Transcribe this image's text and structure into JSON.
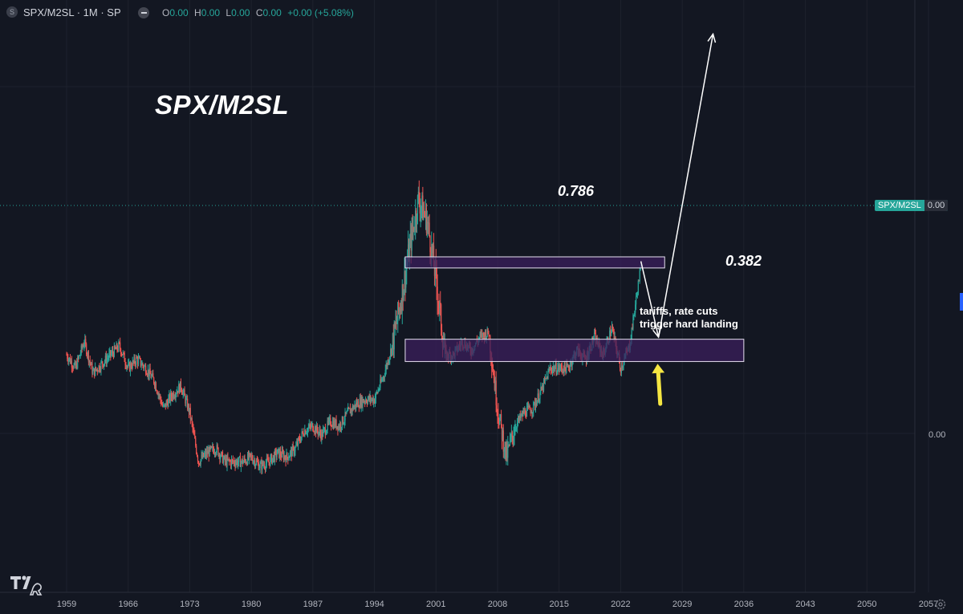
{
  "header": {
    "symbol_icon": "S",
    "title": "SPX/M2SL · 1M · SP",
    "ohlc": [
      {
        "key": "O",
        "value": "0.00"
      },
      {
        "key": "H",
        "value": "0.00"
      },
      {
        "key": "L",
        "value": "0.00"
      },
      {
        "key": "C",
        "value": "0.00"
      }
    ],
    "change": "+0.00 (+5.08%)"
  },
  "price_axis": {
    "last_symbol": "SPX/M2SL",
    "last_value": "0.00",
    "tick": "0.00"
  },
  "time_axis": [
    "1959",
    "1966",
    "1973",
    "1980",
    "1987",
    "1994",
    "2001",
    "2008",
    "2015",
    "2022",
    "2029",
    "2036",
    "2043",
    "2050",
    "2057"
  ],
  "annotations": {
    "title": "SPX/M2SL",
    "level_upper": "0.786",
    "level_lower": "0.382",
    "note_line1": "tariffs, rate cuts",
    "note_line2": "trigger hard landing"
  },
  "colors": {
    "background": "#131722",
    "up": "#26a69a",
    "down": "#ef5350",
    "zone_fill": "#3b1f5c",
    "arrow_yellow": "#f5e642"
  },
  "icons": {
    "hide": "minus-icon",
    "logo": "tradingview-logo",
    "settings": "gear-icon"
  },
  "chart_data": {
    "type": "candlestick",
    "title": "SPX/M2SL",
    "interval": "1M",
    "x_range": [
      1959,
      2060
    ],
    "series": [
      {
        "x": [
          1959,
          1960,
          1961,
          1962,
          1963,
          1964,
          1965,
          1966,
          1967,
          1968,
          1969,
          1970,
          1971,
          1972,
          1973,
          1974,
          1975,
          1976,
          1977,
          1978,
          1979,
          1980,
          1981,
          1982,
          1983,
          1984,
          1985,
          1986,
          1987,
          1988,
          1989,
          1990,
          1991,
          1992,
          1993,
          1994,
          1995,
          1996,
          1997,
          1998,
          1999,
          2000,
          2001,
          2002,
          2003,
          2004,
          2005,
          2006,
          2007,
          2008,
          2009,
          2010,
          2011,
          2012,
          2013,
          2014,
          2015,
          2016,
          2017,
          2018,
          2019,
          2020,
          2021,
          2022,
          2023,
          2024.3
        ],
        "y": [
          0.58,
          0.55,
          0.61,
          0.54,
          0.56,
          0.58,
          0.6,
          0.55,
          0.57,
          0.55,
          0.52,
          0.46,
          0.49,
          0.51,
          0.45,
          0.34,
          0.36,
          0.37,
          0.34,
          0.34,
          0.34,
          0.35,
          0.33,
          0.34,
          0.36,
          0.35,
          0.37,
          0.41,
          0.42,
          0.4,
          0.43,
          0.42,
          0.45,
          0.47,
          0.48,
          0.48,
          0.53,
          0.6,
          0.7,
          0.82,
          0.93,
          0.88,
          0.75,
          0.58,
          0.58,
          0.61,
          0.59,
          0.62,
          0.63,
          0.46,
          0.35,
          0.42,
          0.45,
          0.46,
          0.5,
          0.55,
          0.55,
          0.55,
          0.59,
          0.57,
          0.62,
          0.58,
          0.64,
          0.55,
          0.6,
          0.78
        ]
      }
    ],
    "zones": [
      {
        "label": "0.786",
        "x_start": 1997.5,
        "x_end": 2027.0,
        "y_low": 0.775,
        "y_high": 0.8
      },
      {
        "label": "0.382",
        "x_start": 1997.5,
        "x_end": 2036.0,
        "y_low": 0.565,
        "y_high": 0.615
      }
    ],
    "arrows": [
      {
        "color": "white",
        "from": [
          2024.3,
          0.79
        ],
        "to": [
          2026.3,
          0.62
        ]
      },
      {
        "color": "white",
        "from": [
          2026.3,
          0.62
        ],
        "to": [
          2032.5,
          1.3
        ]
      },
      {
        "color": "yellow",
        "from": [
          2026.5,
          0.47
        ],
        "to": [
          2026.2,
          0.56
        ]
      }
    ],
    "y_ticks": [
      "0.00"
    ],
    "grid": true
  }
}
